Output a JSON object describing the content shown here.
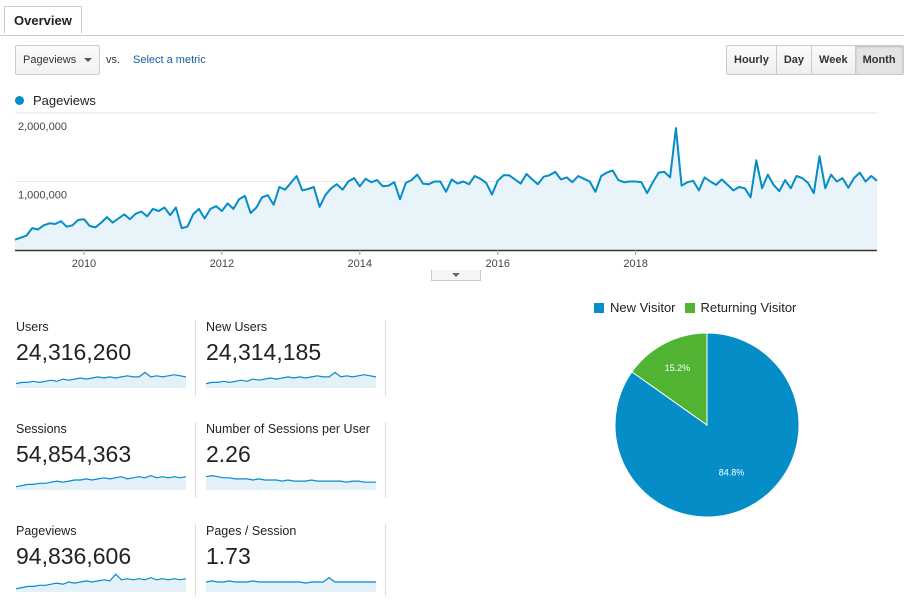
{
  "tab": {
    "label": "Overview"
  },
  "controls": {
    "metric_value": "Pageviews",
    "vs_label": "vs.",
    "select_metric": "Select a metric",
    "ranges": [
      "Hourly",
      "Day",
      "Week",
      "Month"
    ],
    "active_range": "Month"
  },
  "colors": {
    "accent": "#058dc7",
    "new_visitor": "#058dc7",
    "returning_visitor": "#50b432",
    "link": "#1a5fa0"
  },
  "chart_data": [
    {
      "type": "area",
      "series": [
        {
          "name": "Pageviews",
          "y": [
            150000,
            180000,
            210000,
            320000,
            300000,
            360000,
            390000,
            380000,
            420000,
            340000,
            360000,
            440000,
            450000,
            350000,
            330000,
            400000,
            480000,
            400000,
            460000,
            520000,
            450000,
            530000,
            560000,
            490000,
            600000,
            570000,
            620000,
            510000,
            620000,
            320000,
            340000,
            520000,
            600000,
            460000,
            600000,
            640000,
            570000,
            680000,
            600000,
            740000,
            790000,
            540000,
            620000,
            770000,
            800000,
            660000,
            920000,
            880000,
            980000,
            1080000,
            870000,
            890000,
            920000,
            630000,
            800000,
            900000,
            960000,
            880000,
            1000000,
            1050000,
            930000,
            1040000,
            990000,
            1020000,
            930000,
            940000,
            990000,
            740000,
            980000,
            1020000,
            1100000,
            970000,
            960000,
            1000000,
            1000000,
            850000,
            1030000,
            970000,
            1000000,
            960000,
            1080000,
            1040000,
            980000,
            810000,
            1010000,
            1090000,
            1090000,
            1030000,
            970000,
            1110000,
            1030000,
            960000,
            1070000,
            1090000,
            1140000,
            1030000,
            1060000,
            990000,
            1080000,
            1040000,
            1000000,
            850000,
            1080000,
            1130000,
            1160000,
            1020000,
            990000,
            1000000,
            1000000,
            990000,
            830000,
            990000,
            1130000,
            1140000,
            1060000,
            1780000,
            940000,
            990000,
            1010000,
            870000,
            1060000,
            1000000,
            950000,
            1030000,
            950000,
            870000,
            920000,
            900000,
            770000,
            1310000,
            900000,
            1100000,
            950000,
            860000,
            1020000,
            900000,
            1080000,
            1050000,
            980000,
            830000,
            1370000,
            900000,
            1100000,
            1000000,
            1050000,
            910000,
            1050000,
            1130000,
            1000000,
            1080000,
            1010000
          ]
        }
      ],
      "x_ticks": [
        "2010",
        "2012",
        "2014",
        "2016",
        "2018"
      ],
      "y_ticks": [
        "2,000,000",
        "1,000,000"
      ],
      "ylim": [
        0,
        2000000
      ]
    },
    {
      "type": "pie",
      "slices": [
        {
          "name": "New Visitor",
          "value": 84.8,
          "label": "84.8%"
        },
        {
          "name": "Returning Visitor",
          "value": 15.2,
          "label": "15.2%"
        }
      ]
    }
  ],
  "stats": [
    {
      "label": "Users",
      "value": "24,316,260",
      "spark": [
        4,
        5,
        5,
        6,
        5,
        6,
        7,
        6,
        8,
        7,
        8,
        9,
        8,
        9,
        10,
        9,
        10,
        9,
        10,
        11,
        10,
        10,
        14,
        10,
        11,
        10,
        11,
        12,
        11,
        10
      ]
    },
    {
      "label": "New Users",
      "value": "24,314,185",
      "spark": [
        4,
        5,
        5,
        6,
        5,
        6,
        7,
        6,
        8,
        7,
        8,
        9,
        8,
        9,
        10,
        9,
        10,
        9,
        10,
        11,
        10,
        10,
        14,
        10,
        11,
        10,
        11,
        12,
        11,
        10
      ]
    },
    {
      "label": "Sessions",
      "value": "54,854,363",
      "spark": [
        3,
        4,
        5,
        5,
        6,
        6,
        7,
        8,
        7,
        8,
        9,
        9,
        10,
        9,
        10,
        11,
        10,
        11,
        12,
        10,
        11,
        12,
        11,
        13,
        11,
        12,
        11,
        12,
        11,
        12
      ]
    },
    {
      "label": "Number of Sessions per User",
      "value": "2.26",
      "spark": [
        12,
        13,
        12,
        11,
        11,
        10,
        10,
        10,
        9,
        10,
        9,
        9,
        9,
        8,
        9,
        8,
        8,
        8,
        9,
        8,
        8,
        8,
        8,
        8,
        7,
        8,
        8,
        7,
        7,
        7
      ]
    },
    {
      "label": "Pageviews",
      "value": "94,836,606",
      "spark": [
        3,
        4,
        5,
        5,
        6,
        6,
        7,
        8,
        7,
        9,
        8,
        9,
        10,
        9,
        10,
        11,
        10,
        16,
        11,
        12,
        11,
        12,
        11,
        13,
        11,
        12,
        11,
        12,
        11,
        12
      ]
    },
    {
      "label": "Pages / Session",
      "value": "1.73",
      "spark": [
        9,
        10,
        9,
        9,
        10,
        9,
        9,
        9,
        10,
        9,
        9,
        9,
        9,
        9,
        9,
        9,
        9,
        8,
        9,
        9,
        9,
        13,
        9,
        9,
        9,
        9,
        9,
        9,
        9,
        9
      ]
    }
  ]
}
